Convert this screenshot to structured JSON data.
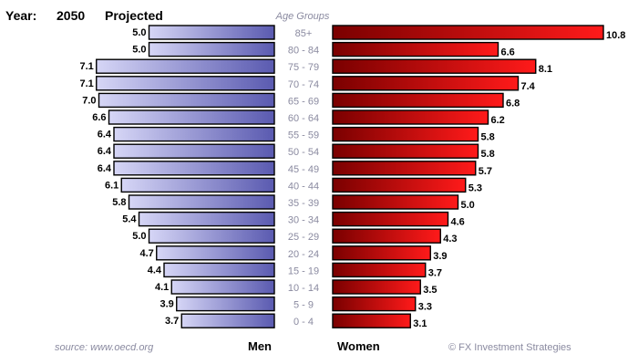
{
  "header": {
    "year_label": "Year:",
    "year": "2050",
    "status": "Projected",
    "age_groups_label": "Age Groups"
  },
  "footer": {
    "source": "source: www.oecd.org",
    "men_label": "Men",
    "women_label": "Women",
    "credit": "© FX Investment Strategies"
  },
  "colors": {
    "men_dark": "#2a2a6a",
    "men_light": "#d6d6f6",
    "women_dark": "#7a0000",
    "women_light": "#ff1a1a",
    "outline": "#000000",
    "age_label": "#8a8aa0"
  },
  "chart_data": {
    "type": "bar",
    "orientation": "horizontal-population-pyramid",
    "categories": [
      "85+",
      "80 - 84",
      "75 - 79",
      "70 - 74",
      "65 - 69",
      "60 - 64",
      "55 - 59",
      "50 - 54",
      "45 - 49",
      "40 - 44",
      "35 - 39",
      "30 - 34",
      "25 - 29",
      "20 - 24",
      "15 - 19",
      "10 - 14",
      "5 - 9",
      "0 - 4"
    ],
    "series": [
      {
        "name": "Men",
        "values": [
          5.0,
          5.0,
          7.1,
          7.1,
          7.0,
          6.6,
          6.4,
          6.4,
          6.4,
          6.1,
          5.8,
          5.4,
          5.0,
          4.7,
          4.4,
          4.1,
          3.9,
          3.7
        ],
        "labels": [
          "5.0",
          "5.0",
          "7.1",
          "7.1",
          "7.0",
          "6.6",
          "6.4",
          "6.4",
          "6.4",
          "6.1",
          "5.8",
          "5.4",
          "5.0",
          "4.7",
          "4.4",
          "4.1",
          "3.9",
          "3.7"
        ]
      },
      {
        "name": "Women",
        "values": [
          10.8,
          6.6,
          8.1,
          7.4,
          6.8,
          6.2,
          5.8,
          5.8,
          5.7,
          5.3,
          5.0,
          4.6,
          4.3,
          3.9,
          3.7,
          3.5,
          3.3,
          3.1
        ],
        "labels": [
          "10.8",
          "6.6",
          "8.1",
          "7.4",
          "6.8",
          "6.2",
          "5.8",
          "5.8",
          "5.7",
          "5.3",
          "5.0",
          "4.6",
          "4.3",
          "3.9",
          "3.7",
          "3.5",
          "3.3",
          "3.1"
        ]
      }
    ],
    "title": "",
    "xlabel": "",
    "ylabel": "Age Groups",
    "value_unit": "",
    "grid": false
  }
}
